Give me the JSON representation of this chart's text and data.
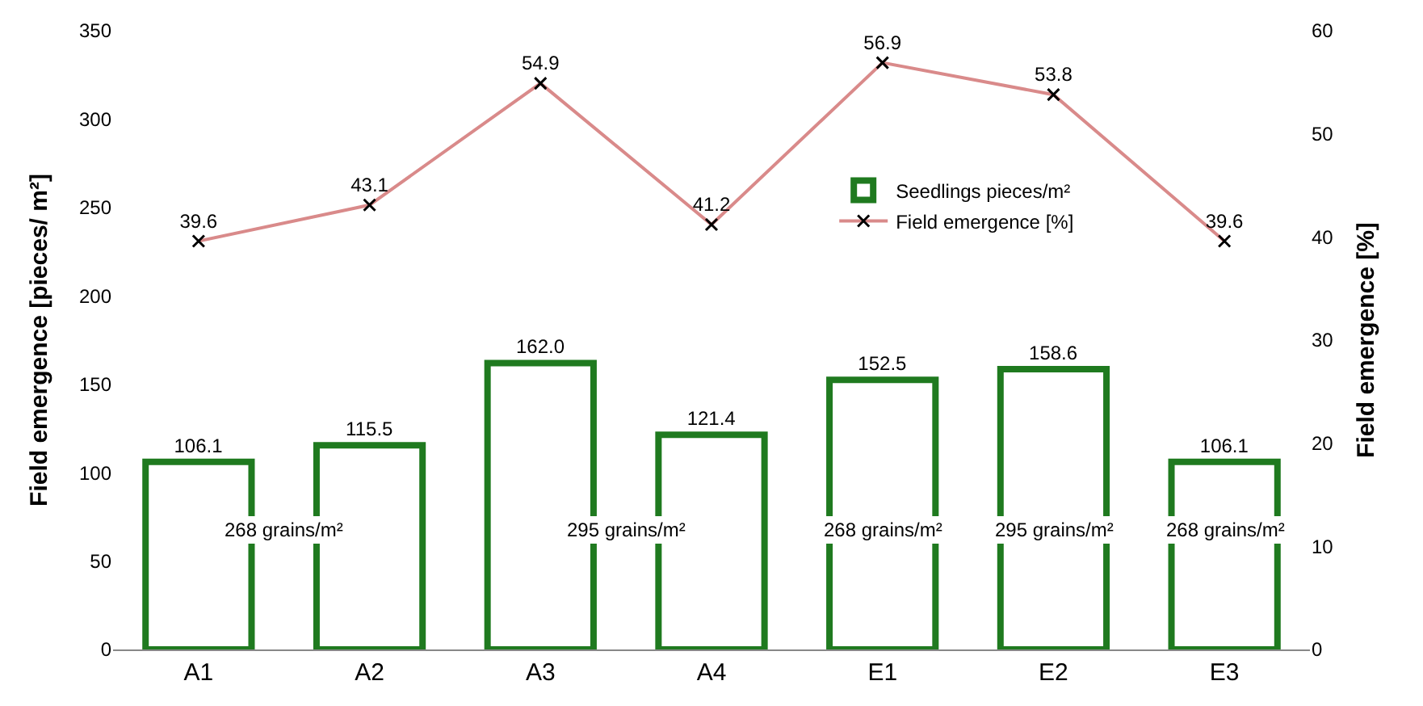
{
  "chart_data": {
    "type": "bar",
    "categories": [
      "A1",
      "A2",
      "A3",
      "A4",
      "E1",
      "E2",
      "E3"
    ],
    "ylabel": "Field emergence [pieces/ m²]",
    "y2label": "Field emergence [%]",
    "ylim": [
      0,
      350
    ],
    "yticks": [
      0,
      50,
      100,
      150,
      200,
      250,
      300,
      350
    ],
    "y2lim": [
      0,
      60
    ],
    "y2ticks": [
      0,
      10,
      20,
      30,
      40,
      50,
      60
    ],
    "series": [
      {
        "name": "Seedlings pieces/m²",
        "color": "#1f7a1f",
        "values": [
          106.1,
          115.5,
          162.0,
          121.4,
          152.5,
          158.6,
          106.1
        ],
        "value_labels": [
          "106.1",
          "115.5",
          "162.0",
          "121.4",
          "152.5",
          "158.6",
          "106.1"
        ]
      },
      {
        "name": "Field emergence [%]",
        "type": "line",
        "axis": "y2",
        "color": "#d98a8a",
        "marker": "cross",
        "values": [
          39.6,
          43.1,
          54.9,
          41.2,
          56.9,
          53.8,
          39.6
        ],
        "value_labels": [
          "39.6",
          "43.1",
          "54.9",
          "41.2",
          "56.9",
          "53.8",
          "39.6"
        ]
      }
    ],
    "annotations": [
      "268 grains/m²",
      "295 grains/m²",
      "268 grains/m²",
      "295 grains/m²",
      "268 grains/m²"
    ],
    "legend": "right"
  }
}
